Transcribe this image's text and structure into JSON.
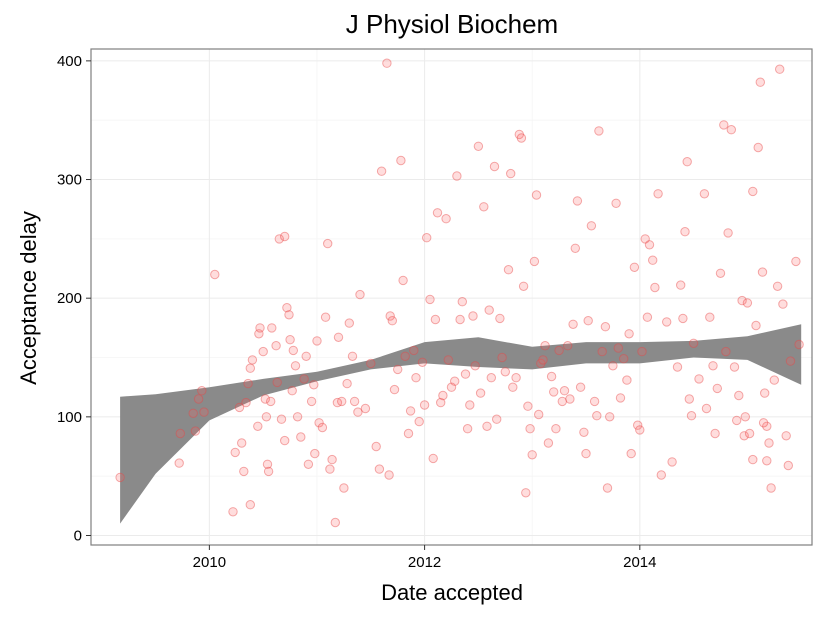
{
  "chart_data": {
    "type": "scatter",
    "title": "J Physiol Biochem",
    "xlabel": "Date accepted",
    "ylabel": "Acceptance delay",
    "x_ticks": [
      2010,
      2012,
      2014
    ],
    "y_ticks": [
      0,
      100,
      200,
      300,
      400
    ],
    "xlim": [
      2008.9,
      2015.6
    ],
    "ylim": [
      -8,
      410
    ],
    "grid": true,
    "point_color": "#f8766d",
    "smooth_band": {
      "x": [
        2009.17,
        2009.5,
        2010.0,
        2010.5,
        2011.0,
        2011.5,
        2012.0,
        2012.5,
        2013.0,
        2013.5,
        2014.0,
        2014.5,
        2015.0,
        2015.5
      ],
      "lower": [
        10,
        52,
        97,
        118,
        130,
        140,
        145,
        142,
        140,
        145,
        145,
        150,
        148,
        127
      ],
      "upper": [
        117,
        119,
        125,
        132,
        138,
        148,
        163,
        167,
        159,
        163,
        163,
        164,
        168,
        178
      ]
    },
    "points": [
      [
        2009.17,
        49
      ],
      [
        2009.72,
        61
      ],
      [
        2009.73,
        86
      ],
      [
        2009.87,
        88
      ],
      [
        2009.85,
        103
      ],
      [
        2009.9,
        115
      ],
      [
        2009.93,
        122
      ],
      [
        2009.95,
        104
      ],
      [
        2010.05,
        220
      ],
      [
        2010.22,
        20
      ],
      [
        2010.24,
        70
      ],
      [
        2010.28,
        108
      ],
      [
        2010.3,
        78
      ],
      [
        2010.32,
        54
      ],
      [
        2010.34,
        112
      ],
      [
        2010.36,
        128
      ],
      [
        2010.38,
        26
      ],
      [
        2010.38,
        141
      ],
      [
        2010.4,
        148
      ],
      [
        2010.45,
        92
      ],
      [
        2010.46,
        170
      ],
      [
        2010.47,
        175
      ],
      [
        2010.5,
        155
      ],
      [
        2010.52,
        115
      ],
      [
        2010.53,
        100
      ],
      [
        2010.54,
        60
      ],
      [
        2010.55,
        54
      ],
      [
        2010.57,
        113
      ],
      [
        2010.58,
        175
      ],
      [
        2010.62,
        160
      ],
      [
        2010.63,
        129
      ],
      [
        2010.65,
        250
      ],
      [
        2010.67,
        98
      ],
      [
        2010.7,
        252
      ],
      [
        2010.7,
        80
      ],
      [
        2010.72,
        192
      ],
      [
        2010.74,
        186
      ],
      [
        2010.75,
        165
      ],
      [
        2010.77,
        122
      ],
      [
        2010.78,
        156
      ],
      [
        2010.8,
        143
      ],
      [
        2010.82,
        100
      ],
      [
        2010.85,
        83
      ],
      [
        2010.88,
        132
      ],
      [
        2010.9,
        151
      ],
      [
        2010.92,
        60
      ],
      [
        2010.95,
        113
      ],
      [
        2010.97,
        127
      ],
      [
        2010.98,
        69
      ],
      [
        2011.0,
        164
      ],
      [
        2011.02,
        95
      ],
      [
        2011.05,
        91
      ],
      [
        2011.08,
        184
      ],
      [
        2011.1,
        246
      ],
      [
        2011.12,
        56
      ],
      [
        2011.14,
        64
      ],
      [
        2011.17,
        11
      ],
      [
        2011.19,
        112
      ],
      [
        2011.2,
        167
      ],
      [
        2011.23,
        113
      ],
      [
        2011.25,
        40
      ],
      [
        2011.28,
        128
      ],
      [
        2011.3,
        179
      ],
      [
        2011.33,
        151
      ],
      [
        2011.35,
        113
      ],
      [
        2011.38,
        104
      ],
      [
        2011.4,
        203
      ],
      [
        2011.45,
        107
      ],
      [
        2011.5,
        145
      ],
      [
        2011.55,
        75
      ],
      [
        2011.58,
        56
      ],
      [
        2011.6,
        307
      ],
      [
        2011.65,
        398
      ],
      [
        2011.67,
        51
      ],
      [
        2011.68,
        185
      ],
      [
        2011.7,
        181
      ],
      [
        2011.72,
        123
      ],
      [
        2011.75,
        140
      ],
      [
        2011.78,
        316
      ],
      [
        2011.8,
        215
      ],
      [
        2011.82,
        151
      ],
      [
        2011.85,
        86
      ],
      [
        2011.87,
        105
      ],
      [
        2011.9,
        156
      ],
      [
        2011.92,
        133
      ],
      [
        2011.95,
        96
      ],
      [
        2011.98,
        146
      ],
      [
        2012.0,
        110
      ],
      [
        2012.02,
        251
      ],
      [
        2012.05,
        199
      ],
      [
        2012.08,
        65
      ],
      [
        2012.1,
        182
      ],
      [
        2012.12,
        272
      ],
      [
        2012.15,
        112
      ],
      [
        2012.17,
        118
      ],
      [
        2012.2,
        267
      ],
      [
        2012.22,
        148
      ],
      [
        2012.25,
        125
      ],
      [
        2012.28,
        130
      ],
      [
        2012.3,
        303
      ],
      [
        2012.33,
        182
      ],
      [
        2012.35,
        197
      ],
      [
        2012.38,
        136
      ],
      [
        2012.4,
        90
      ],
      [
        2012.42,
        110
      ],
      [
        2012.45,
        185
      ],
      [
        2012.47,
        143
      ],
      [
        2012.5,
        328
      ],
      [
        2012.52,
        120
      ],
      [
        2012.55,
        277
      ],
      [
        2012.58,
        92
      ],
      [
        2012.6,
        190
      ],
      [
        2012.62,
        133
      ],
      [
        2012.65,
        311
      ],
      [
        2012.67,
        98
      ],
      [
        2012.7,
        183
      ],
      [
        2012.72,
        150
      ],
      [
        2012.75,
        138
      ],
      [
        2012.78,
        224
      ],
      [
        2012.8,
        305
      ],
      [
        2012.82,
        125
      ],
      [
        2012.85,
        133
      ],
      [
        2012.88,
        338
      ],
      [
        2012.9,
        335
      ],
      [
        2012.92,
        210
      ],
      [
        2012.94,
        36
      ],
      [
        2012.96,
        109
      ],
      [
        2012.98,
        90
      ],
      [
        2013.0,
        68
      ],
      [
        2013.02,
        231
      ],
      [
        2013.04,
        287
      ],
      [
        2013.06,
        102
      ],
      [
        2013.08,
        145
      ],
      [
        2013.1,
        148
      ],
      [
        2013.12,
        160
      ],
      [
        2013.15,
        78
      ],
      [
        2013.18,
        134
      ],
      [
        2013.2,
        121
      ],
      [
        2013.22,
        90
      ],
      [
        2013.25,
        156
      ],
      [
        2013.28,
        113
      ],
      [
        2013.3,
        122
      ],
      [
        2013.33,
        160
      ],
      [
        2013.35,
        115
      ],
      [
        2013.38,
        178
      ],
      [
        2013.4,
        242
      ],
      [
        2013.42,
        282
      ],
      [
        2013.45,
        125
      ],
      [
        2013.48,
        87
      ],
      [
        2013.5,
        69
      ],
      [
        2013.52,
        181
      ],
      [
        2013.55,
        261
      ],
      [
        2013.58,
        113
      ],
      [
        2013.6,
        101
      ],
      [
        2013.62,
        341
      ],
      [
        2013.65,
        155
      ],
      [
        2013.68,
        176
      ],
      [
        2013.7,
        40
      ],
      [
        2013.72,
        100
      ],
      [
        2013.75,
        143
      ],
      [
        2013.78,
        280
      ],
      [
        2013.8,
        158
      ],
      [
        2013.82,
        116
      ],
      [
        2013.85,
        149
      ],
      [
        2013.88,
        131
      ],
      [
        2013.9,
        170
      ],
      [
        2013.92,
        69
      ],
      [
        2013.95,
        226
      ],
      [
        2013.98,
        93
      ],
      [
        2014.0,
        89
      ],
      [
        2014.02,
        155
      ],
      [
        2014.05,
        250
      ],
      [
        2014.07,
        184
      ],
      [
        2014.09,
        245
      ],
      [
        2014.12,
        232
      ],
      [
        2014.14,
        209
      ],
      [
        2014.17,
        288
      ],
      [
        2014.2,
        51
      ],
      [
        2014.25,
        180
      ],
      [
        2014.3,
        62
      ],
      [
        2014.35,
        142
      ],
      [
        2014.38,
        211
      ],
      [
        2014.4,
        183
      ],
      [
        2014.42,
        256
      ],
      [
        2014.44,
        315
      ],
      [
        2014.46,
        115
      ],
      [
        2014.48,
        101
      ],
      [
        2014.5,
        162
      ],
      [
        2014.55,
        132
      ],
      [
        2014.6,
        288
      ],
      [
        2014.62,
        107
      ],
      [
        2014.65,
        184
      ],
      [
        2014.68,
        143
      ],
      [
        2014.7,
        86
      ],
      [
        2014.72,
        124
      ],
      [
        2014.75,
        221
      ],
      [
        2014.78,
        346
      ],
      [
        2014.8,
        155
      ],
      [
        2014.82,
        255
      ],
      [
        2014.85,
        342
      ],
      [
        2014.88,
        142
      ],
      [
        2014.9,
        97
      ],
      [
        2014.92,
        118
      ],
      [
        2014.95,
        198
      ],
      [
        2014.97,
        84
      ],
      [
        2015.0,
        196
      ],
      [
        2015.02,
        86
      ],
      [
        2015.05,
        290
      ],
      [
        2015.08,
        177
      ],
      [
        2015.1,
        327
      ],
      [
        2015.12,
        382
      ],
      [
        2015.14,
        222
      ],
      [
        2015.16,
        120
      ],
      [
        2015.18,
        92
      ],
      [
        2015.2,
        78
      ],
      [
        2015.22,
        40
      ],
      [
        2015.25,
        131
      ],
      [
        2015.28,
        210
      ],
      [
        2015.3,
        393
      ],
      [
        2015.33,
        195
      ],
      [
        2015.36,
        84
      ],
      [
        2015.38,
        59
      ],
      [
        2015.4,
        147
      ],
      [
        2015.45,
        231
      ],
      [
        2015.48,
        161
      ],
      [
        2015.15,
        95
      ],
      [
        2015.18,
        63
      ],
      [
        2015.05,
        64
      ],
      [
        2014.98,
        100
      ]
    ]
  }
}
